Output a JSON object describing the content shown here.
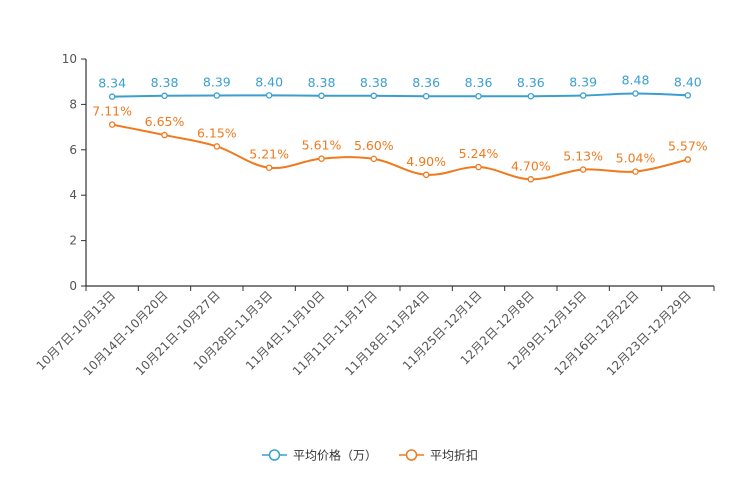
{
  "chart_data": {
    "type": "line",
    "title": "",
    "xlabel": "",
    "ylabel": "",
    "ylim": [
      0,
      10
    ],
    "yticks": [
      0,
      2,
      4,
      6,
      8,
      10
    ],
    "grid": false,
    "legend_position": "bottom-center",
    "categories": [
      "10月7日-10月13日",
      "10月14日-10月20日",
      "10月21日-10月27日",
      "10月28日-11月3日",
      "11月4日-11月10日",
      "11月11日-11月17日",
      "11月18日-11月24日",
      "11月25日-12月1日",
      "12月2日-12月8日",
      "12月9日-12月15日",
      "12月16日-12月22日",
      "12月23日-12月29日"
    ],
    "series": [
      {
        "name": "平均价格（万）",
        "color": "#3a9fd0",
        "values": [
          8.34,
          8.38,
          8.39,
          8.4,
          8.38,
          8.38,
          8.36,
          8.36,
          8.36,
          8.39,
          8.48,
          8.4
        ],
        "labels": [
          "8.34",
          "8.38",
          "8.39",
          "8.40",
          "8.38",
          "8.38",
          "8.36",
          "8.36",
          "8.36",
          "8.39",
          "8.48",
          "8.40"
        ]
      },
      {
        "name": "平均折扣",
        "color": "#f07a1e",
        "values": [
          7.11,
          6.65,
          6.15,
          5.21,
          5.61,
          5.6,
          4.9,
          5.24,
          4.7,
          5.13,
          5.04,
          5.57
        ],
        "labels": [
          "7.11%",
          "6.65%",
          "6.15%",
          "5.21%",
          "5.61%",
          "5.60%",
          "4.90%",
          "5.24%",
          "4.70%",
          "5.13%",
          "5.04%",
          "5.57%"
        ]
      }
    ]
  }
}
